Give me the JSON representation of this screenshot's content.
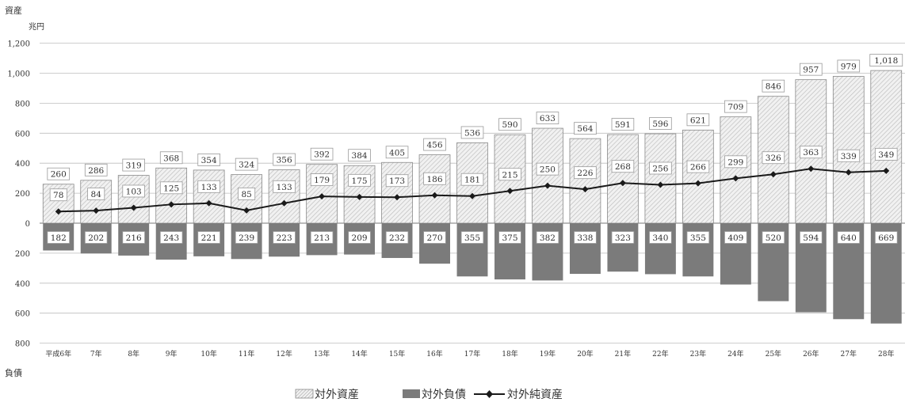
{
  "colors": {
    "assets_fill": "#ececec",
    "assets_stroke": "#8a8a8a",
    "liabilities_fill": "#7b7b7b",
    "net_line": "#1a1a1a",
    "grid": "#bdbdbd",
    "text": "#333333"
  },
  "chart_data": {
    "type": "bar",
    "title": "",
    "y_top_label": "資産",
    "y_bottom_label": "負債",
    "unit_label": "兆円",
    "ylim": [
      -800,
      1200
    ],
    "yticks": [
      1200,
      1000,
      800,
      600,
      400,
      200,
      0,
      -200,
      -400,
      -600,
      -800
    ],
    "ytick_labels": [
      "1,200",
      "1,000",
      "800",
      "600",
      "400",
      "200",
      "0",
      "200",
      "400",
      "600",
      "800"
    ],
    "grid": true,
    "legend_position": "bottom-center",
    "categories": [
      "平成6年",
      "7年",
      "8年",
      "9年",
      "10年",
      "11年",
      "12年",
      "13年",
      "14年",
      "15年",
      "16年",
      "17年",
      "18年",
      "19年",
      "20年",
      "21年",
      "22年",
      "23年",
      "24年",
      "25年",
      "26年",
      "27年",
      "28年"
    ],
    "series": [
      {
        "name": "対外資産",
        "kind": "bar",
        "values": [
          260,
          286,
          319,
          368,
          354,
          324,
          356,
          392,
          384,
          405,
          456,
          536,
          590,
          633,
          564,
          591,
          596,
          621,
          709,
          846,
          957,
          979,
          1018
        ],
        "labels": [
          "260",
          "286",
          "319",
          "368",
          "354",
          "324",
          "356",
          "392",
          "384",
          "405",
          "456",
          "536",
          "590",
          "633",
          "564",
          "591",
          "596",
          "621",
          "709",
          "846",
          "957",
          "979",
          "1,018"
        ]
      },
      {
        "name": "対外負債",
        "kind": "bar-negative",
        "values": [
          182,
          202,
          216,
          243,
          221,
          239,
          223,
          213,
          209,
          232,
          270,
          355,
          375,
          382,
          338,
          323,
          340,
          355,
          409,
          520,
          594,
          640,
          669
        ],
        "labels": [
          "182",
          "202",
          "216",
          "243",
          "221",
          "239",
          "223",
          "213",
          "209",
          "232",
          "270",
          "355",
          "375",
          "382",
          "338",
          "323",
          "340",
          "355",
          "409",
          "520",
          "594",
          "640",
          "669"
        ]
      },
      {
        "name": "対外純資産",
        "kind": "line",
        "values": [
          78,
          84,
          103,
          125,
          133,
          85,
          133,
          179,
          175,
          173,
          186,
          181,
          215,
          250,
          226,
          268,
          256,
          266,
          299,
          326,
          363,
          339,
          349
        ],
        "labels": [
          "78",
          "84",
          "103",
          "125",
          "133",
          "85",
          "133",
          "179",
          "175",
          "173",
          "186",
          "181",
          "215",
          "250",
          "226",
          "268",
          "256",
          "266",
          "299",
          "326",
          "363",
          "339",
          "349"
        ]
      }
    ]
  }
}
